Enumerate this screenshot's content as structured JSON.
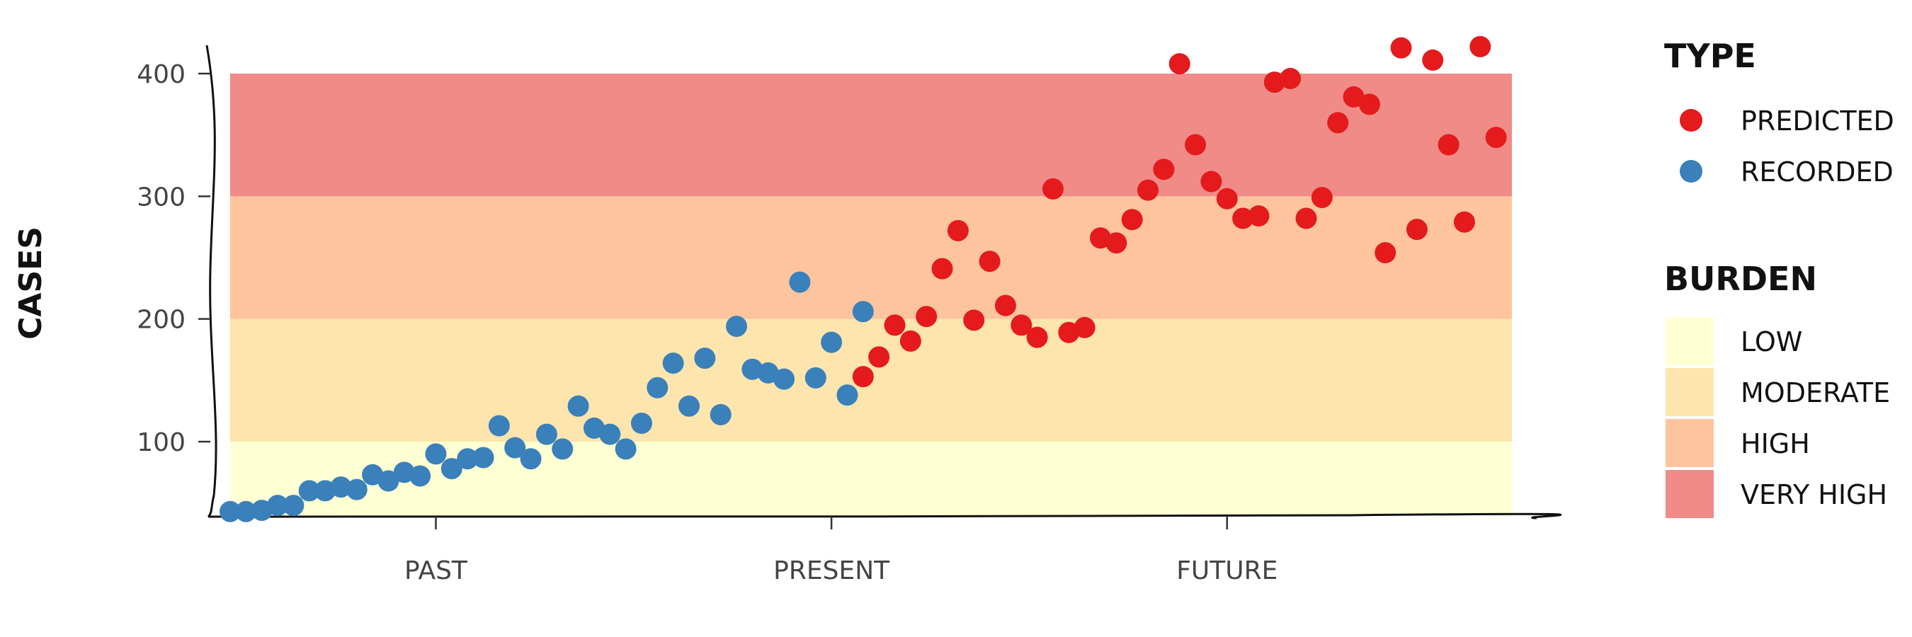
{
  "chart_data": {
    "type": "scatter",
    "xlabel": "",
    "ylabel": "CASES",
    "ylim": [
      40,
      430
    ],
    "y_ticks": [
      100,
      200,
      300,
      400
    ],
    "y_tick_labels": [
      "100",
      "200",
      "300",
      "400"
    ],
    "xlim": [
      0,
      81
    ],
    "x_ticks": [
      {
        "value": 13,
        "label": "PAST"
      },
      {
        "value": 38,
        "label": "PRESENT"
      },
      {
        "value": 63,
        "label": "FUTURE"
      }
    ],
    "grid": false,
    "legend_position": "right",
    "bands": [
      {
        "name": "LOW",
        "from": 40,
        "to": 100,
        "color": "#FFFFD4"
      },
      {
        "name": "MODERATE",
        "from": 100,
        "to": 200,
        "color": "#FDE5AD"
      },
      {
        "name": "HIGH",
        "from": 200,
        "to": 300,
        "color": "#FDC49E"
      },
      {
        "name": "VERY HIGH",
        "from": 300,
        "to": 400,
        "color": "#F08B88"
      }
    ],
    "series": [
      {
        "name": "RECORDED",
        "color": "#3A80BA",
        "points": [
          {
            "x": 0,
            "y": 43
          },
          {
            "x": 1,
            "y": 43
          },
          {
            "x": 2,
            "y": 44
          },
          {
            "x": 3,
            "y": 48
          },
          {
            "x": 4,
            "y": 48
          },
          {
            "x": 5,
            "y": 60
          },
          {
            "x": 6,
            "y": 60
          },
          {
            "x": 7,
            "y": 63
          },
          {
            "x": 8,
            "y": 61
          },
          {
            "x": 9,
            "y": 73
          },
          {
            "x": 10,
            "y": 68
          },
          {
            "x": 11,
            "y": 75
          },
          {
            "x": 12,
            "y": 72
          },
          {
            "x": 13,
            "y": 90
          },
          {
            "x": 14,
            "y": 78
          },
          {
            "x": 15,
            "y": 86
          },
          {
            "x": 16,
            "y": 87
          },
          {
            "x": 17,
            "y": 113
          },
          {
            "x": 18,
            "y": 95
          },
          {
            "x": 19,
            "y": 86
          },
          {
            "x": 20,
            "y": 106
          },
          {
            "x": 21,
            "y": 94
          },
          {
            "x": 22,
            "y": 129
          },
          {
            "x": 23,
            "y": 111
          },
          {
            "x": 24,
            "y": 106
          },
          {
            "x": 25,
            "y": 94
          },
          {
            "x": 26,
            "y": 115
          },
          {
            "x": 27,
            "y": 144
          },
          {
            "x": 28,
            "y": 164
          },
          {
            "x": 29,
            "y": 129
          },
          {
            "x": 30,
            "y": 168
          },
          {
            "x": 31,
            "y": 122
          },
          {
            "x": 32,
            "y": 194
          },
          {
            "x": 33,
            "y": 159
          },
          {
            "x": 34,
            "y": 156
          },
          {
            "x": 35,
            "y": 151
          },
          {
            "x": 36,
            "y": 230
          },
          {
            "x": 37,
            "y": 152
          },
          {
            "x": 38,
            "y": 181
          },
          {
            "x": 39,
            "y": 138
          },
          {
            "x": 40,
            "y": 206
          }
        ]
      },
      {
        "name": "PREDICTED",
        "color": "#E41A1C",
        "points": [
          {
            "x": 40,
            "y": 153
          },
          {
            "x": 41,
            "y": 169
          },
          {
            "x": 42,
            "y": 195
          },
          {
            "x": 43,
            "y": 182
          },
          {
            "x": 44,
            "y": 202
          },
          {
            "x": 45,
            "y": 241
          },
          {
            "x": 46,
            "y": 272
          },
          {
            "x": 47,
            "y": 199
          },
          {
            "x": 48,
            "y": 247
          },
          {
            "x": 49,
            "y": 211
          },
          {
            "x": 50,
            "y": 195
          },
          {
            "x": 51,
            "y": 185
          },
          {
            "x": 52,
            "y": 306
          },
          {
            "x": 53,
            "y": 189
          },
          {
            "x": 54,
            "y": 193
          },
          {
            "x": 55,
            "y": 266
          },
          {
            "x": 56,
            "y": 262
          },
          {
            "x": 57,
            "y": 281
          },
          {
            "x": 58,
            "y": 305
          },
          {
            "x": 59,
            "y": 322
          },
          {
            "x": 60,
            "y": 408
          },
          {
            "x": 61,
            "y": 342
          },
          {
            "x": 62,
            "y": 312
          },
          {
            "x": 63,
            "y": 298
          },
          {
            "x": 64,
            "y": 282
          },
          {
            "x": 65,
            "y": 284
          },
          {
            "x": 66,
            "y": 393
          },
          {
            "x": 67,
            "y": 396
          },
          {
            "x": 68,
            "y": 282
          },
          {
            "x": 69,
            "y": 299
          },
          {
            "x": 70,
            "y": 360
          },
          {
            "x": 71,
            "y": 381
          },
          {
            "x": 72,
            "y": 375
          },
          {
            "x": 73,
            "y": 254
          },
          {
            "x": 74,
            "y": 421
          },
          {
            "x": 75,
            "y": 273
          },
          {
            "x": 76,
            "y": 411
          },
          {
            "x": 77,
            "y": 342
          },
          {
            "x": 78,
            "y": 279
          },
          {
            "x": 79,
            "y": 422
          },
          {
            "x": 80,
            "y": 348
          }
        ]
      }
    ]
  },
  "legend": {
    "type_title": "TYPE",
    "type_items": [
      {
        "label": "PREDICTED",
        "color": "#E41A1C"
      },
      {
        "label": "RECORDED",
        "color": "#3A80BA"
      }
    ],
    "burden_title": "BURDEN",
    "burden_items": [
      {
        "label": "LOW",
        "color": "#FFFFD4"
      },
      {
        "label": "MODERATE",
        "color": "#FDE5AD"
      },
      {
        "label": "HIGH",
        "color": "#FDC49E"
      },
      {
        "label": "VERY HIGH",
        "color": "#F08B88"
      }
    ]
  }
}
